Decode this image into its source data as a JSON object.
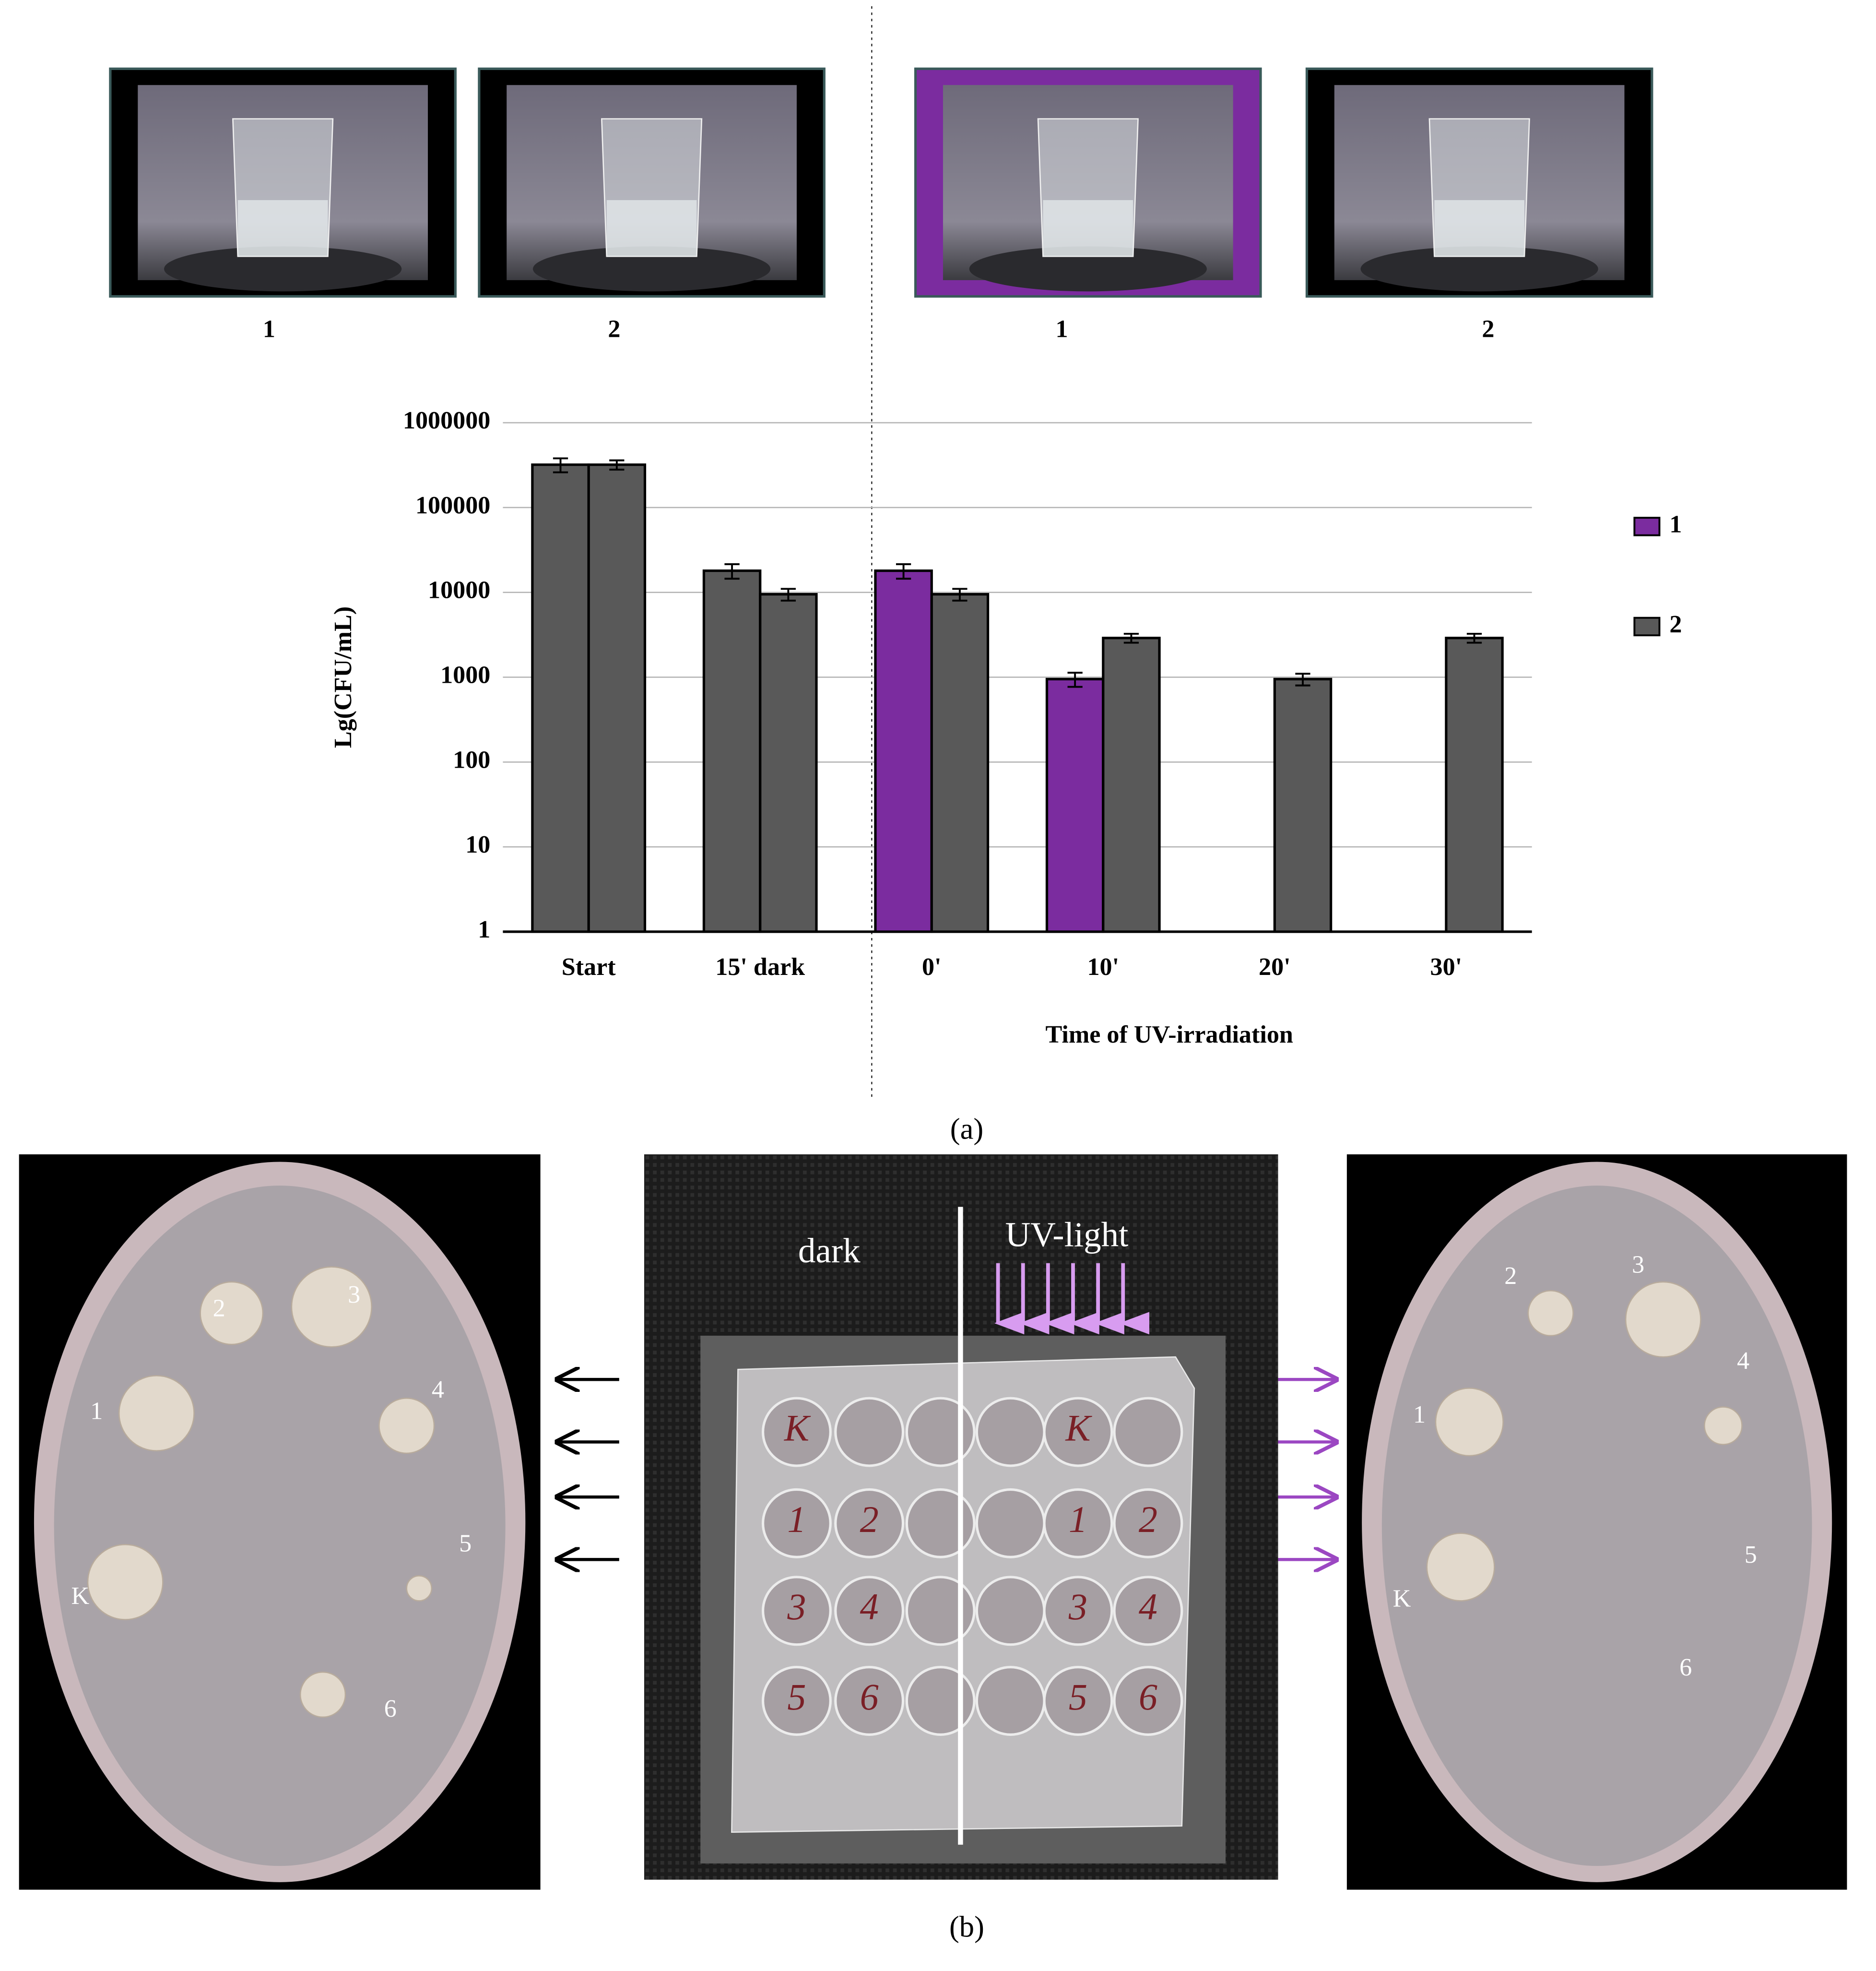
{
  "photos_top": {
    "labels": [
      "1",
      "2",
      "1",
      "2"
    ]
  },
  "caption_a": "(a)",
  "chart_data": {
    "type": "bar",
    "log": true,
    "y_label": "Lg(CFU/mL)",
    "x_label": "Time of UV-irradiation",
    "categories": [
      "Start",
      "15' dark",
      "0'",
      "10'",
      "20'",
      "30'"
    ],
    "series": [
      {
        "name": "1",
        "color": "#7b2c9f",
        "bar_colors": [
          "#595959",
          "#595959",
          "#7b2c9f",
          "#7b2c9f",
          null,
          null
        ],
        "values": [
          320000,
          18000,
          18000,
          950,
          null,
          null
        ],
        "errors": [
          60000,
          3500,
          3500,
          180,
          null,
          null
        ]
      },
      {
        "name": "2",
        "color": "#595959",
        "bar_colors": [
          "#595959",
          "#595959",
          "#595959",
          "#595959",
          "#595959",
          "#595959"
        ],
        "values": [
          320000,
          9500,
          9500,
          2900,
          950,
          2900
        ],
        "errors": [
          40000,
          1500,
          1500,
          350,
          150,
          350
        ]
      }
    ],
    "ylim": [
      1,
      1000000
    ],
    "yticks": [
      1,
      10,
      100,
      1000,
      10000,
      100000,
      1000000
    ],
    "grid": true,
    "legend": "right"
  },
  "panel_b": {
    "overlay": {
      "left": "dark",
      "right": "UV-light"
    },
    "left_plate": [
      "1",
      "2",
      "3",
      "4",
      "5",
      "6",
      "K"
    ],
    "right_plate": [
      "1",
      "2",
      "3",
      "4",
      "5",
      "6",
      "K"
    ],
    "wells": [
      [
        "K",
        null,
        null,
        null,
        "K",
        null
      ],
      [
        "1",
        "2",
        null,
        null,
        "1",
        "2"
      ],
      [
        "3",
        "4",
        null,
        null,
        "3",
        "4"
      ],
      [
        "5",
        "6",
        null,
        null,
        "5",
        "6"
      ]
    ]
  },
  "caption_b": "(b)"
}
